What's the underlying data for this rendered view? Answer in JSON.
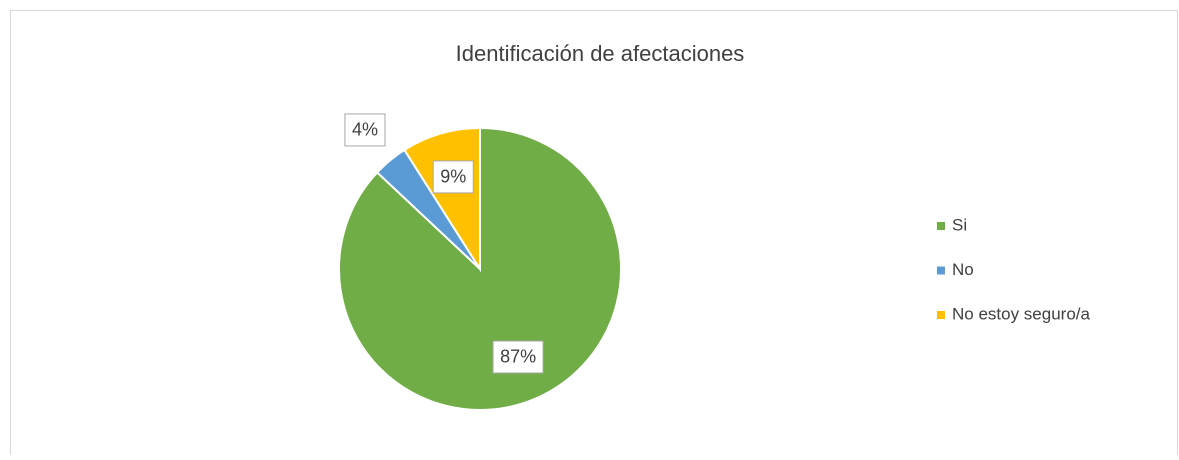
{
  "chart_data": {
    "type": "pie",
    "title": "Identificación de afectaciones",
    "categories": [
      "Si",
      "No",
      "No estoy seguro/a"
    ],
    "values": [
      87,
      4,
      9
    ],
    "value_labels": [
      "87%",
      "4%",
      "9%"
    ],
    "colors": [
      "#70ad47",
      "#5b9bd5",
      "#ffc000"
    ],
    "legend": "right"
  }
}
